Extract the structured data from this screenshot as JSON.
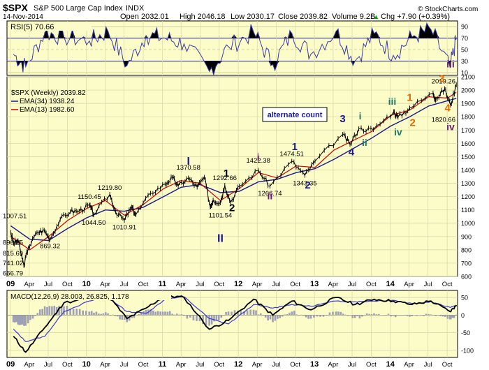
{
  "header": {
    "symbol": "$SPX",
    "name": "S&P 500 Large Cap Index",
    "exchange": "INDX",
    "date": "14-Nov-2014",
    "open": "Open 2032.01",
    "high": "High 2046.18",
    "low": "Low 2030.17",
    "close": "Close 2039.82",
    "volume": "Volume 9.2B",
    "chg": "Chg +7.90 (+0.39%)",
    "chg_arrow": "▲",
    "watermark": "© StockCharts.com"
  },
  "colors": {
    "panel_bg": "#fcfcc8",
    "price_line": "#000000",
    "ema34": "#1a1a8c",
    "ema13": "#cc0000",
    "rsi": "#3a3aa8",
    "macd": "#000000",
    "signal": "#3a3ad0",
    "hist": "#a0a0b4",
    "chg_up": "#00a000",
    "wave_dark_blue": "#1a1a8c",
    "wave_black": "#000000",
    "wave_purple": "#6a1a78",
    "wave_green": "#1a7a6a",
    "wave_orange": "#e06a00"
  },
  "panels": {
    "rsi_label": "RSI(5) 70.66",
    "price_label": "$SPX (Weekly) 2039.82",
    "ema34_label": "EMA(34) 1938.24",
    "ema13_label": "EMA(13) 1982.60",
    "macd_label": "MACD(12,26,9) 28.003, 26.825, 1.178",
    "alternate_label": "alternate count"
  },
  "chart_data": [
    {
      "type": "line",
      "title": "RSI(5) 70.66",
      "ylim": [
        5,
        100
      ],
      "y_ticks": [
        10,
        30,
        50,
        70,
        90
      ],
      "x": [
        "2009-01",
        "2009-03",
        "2009-06",
        "2009-09",
        "2010-01",
        "2010-04",
        "2010-07",
        "2010-10",
        "2011-01",
        "2011-04",
        "2011-08",
        "2011-11",
        "2012-03",
        "2012-06",
        "2012-09",
        "2012-12",
        "2013-04",
        "2013-07",
        "2013-10",
        "2014-01",
        "2014-04",
        "2014-07",
        "2014-10",
        "2014-11"
      ],
      "values": [
        42,
        20,
        80,
        72,
        65,
        82,
        22,
        75,
        70,
        60,
        12,
        55,
        80,
        24,
        78,
        42,
        82,
        30,
        78,
        40,
        72,
        85,
        18,
        71
      ]
    },
    {
      "type": "line",
      "title": "$SPX (Weekly) 2039.82",
      "ylim": [
        600,
        2100
      ],
      "y_ticks": [
        600,
        700,
        800,
        900,
        1000,
        1100,
        1200,
        1300,
        1400,
        1500,
        1600,
        1700,
        1800,
        1900,
        2000,
        2100
      ],
      "x_ticks": [
        "09",
        "Apr",
        "Jul",
        "Oct",
        "10",
        "Apr",
        "Jul",
        "Oct",
        "11",
        "Apr",
        "Jul",
        "Oct",
        "12",
        "Apr",
        "Jul",
        "Oct",
        "13",
        "Apr",
        "Jul",
        "Oct",
        "14",
        "Apr",
        "Jul",
        "Oct"
      ],
      "series": [
        {
          "name": "$SPX (Weekly) 2039.82",
          "x": [
            "2009-01-02",
            "2009-01-16",
            "2009-02-06",
            "2009-03-06",
            "2009-03-27",
            "2009-05-08",
            "2009-06-12",
            "2009-07-10",
            "2009-08-28",
            "2009-10-16",
            "2009-11-27",
            "2010-01-15",
            "2010-02-05",
            "2010-04-23",
            "2010-05-21",
            "2010-07-02",
            "2010-08-06",
            "2010-08-27",
            "2010-11-05",
            "2011-01-14",
            "2011-02-18",
            "2011-03-18",
            "2011-05-06",
            "2011-06-17",
            "2011-07-22",
            "2011-08-19",
            "2011-09-02",
            "2011-10-07",
            "2011-10-28",
            "2011-11-25",
            "2012-01-06",
            "2012-04-06",
            "2012-06-01",
            "2012-09-14",
            "2012-11-16",
            "2013-01-04",
            "2013-05-17",
            "2013-06-21",
            "2013-08-02",
            "2013-10-11",
            "2014-01-17",
            "2014-02-07",
            "2014-04-04",
            "2014-07-25",
            "2014-08-08",
            "2014-09-19",
            "2014-10-17",
            "2014-11-14"
          ],
          "values": [
            931,
            850,
            868,
            683,
            815,
            929,
            946,
            880,
            1029,
            1087,
            1091,
            1136,
            1066,
            1217,
            1087,
            1022,
            1121,
            1064,
            1225,
            1293,
            1343,
            1279,
            1340,
            1271,
            1345,
            1123,
            1174,
            1155,
            1285,
            1158,
            1277,
            1398,
            1278,
            1466,
            1359,
            1466,
            1667,
            1592,
            1709,
            1703,
            1838,
            1797,
            1865,
            1978,
            1931,
            2010,
            1886,
            2040
          ]
        },
        {
          "name": "EMA(34) 1938.24",
          "x": [
            "2009-01-02",
            "2009-04-03",
            "2009-07-03",
            "2009-10-02",
            "2010-01-01",
            "2010-04-02",
            "2010-07-02",
            "2010-10-01",
            "2011-01-07",
            "2011-04-01",
            "2011-07-01",
            "2011-10-07",
            "2012-01-06",
            "2012-04-06",
            "2012-07-06",
            "2012-10-05",
            "2013-01-04",
            "2013-04-05",
            "2013-07-05",
            "2013-10-04",
            "2014-01-03",
            "2014-04-04",
            "2014-07-04",
            "2014-10-03",
            "2014-11-14"
          ],
          "values": [
            980,
            880,
            870,
            960,
            1040,
            1100,
            1090,
            1120,
            1200,
            1270,
            1290,
            1230,
            1240,
            1310,
            1330,
            1380,
            1410,
            1480,
            1560,
            1640,
            1730,
            1800,
            1880,
            1920,
            1938
          ]
        },
        {
          "name": "EMA(13) 1982.60",
          "x": [
            "2009-01-02",
            "2009-04-03",
            "2009-07-03",
            "2009-10-02",
            "2010-01-01",
            "2010-04-02",
            "2010-07-02",
            "2010-10-01",
            "2011-01-07",
            "2011-04-01",
            "2011-07-01",
            "2011-10-07",
            "2012-01-06",
            "2012-04-06",
            "2012-07-06",
            "2012-10-05",
            "2013-01-04",
            "2013-04-05",
            "2013-07-05",
            "2013-10-04",
            "2014-01-03",
            "2014-04-04",
            "2014-07-04",
            "2014-10-03",
            "2014-11-14"
          ],
          "values": [
            900,
            800,
            900,
            1020,
            1110,
            1170,
            1060,
            1140,
            1260,
            1320,
            1300,
            1170,
            1260,
            1380,
            1340,
            1430,
            1420,
            1550,
            1620,
            1690,
            1810,
            1850,
            1950,
            1940,
            1983
          ]
        }
      ],
      "price_labels": [
        {
          "text": "1007.51",
          "x": "2008-12-19",
          "y": 1007.51
        },
        {
          "text": "896.25",
          "x": "2008-12-26",
          "y": 896.25
        },
        {
          "text": "815.69",
          "x": "2009-01-09",
          "y": 815.69
        },
        {
          "text": "741.02",
          "x": "2009-01-30",
          "y": 741.02
        },
        {
          "text": "666.79",
          "x": "2009-03-06",
          "y": 666.79
        },
        {
          "text": "869.32",
          "x": "2009-07-10",
          "y": 869.32
        },
        {
          "text": "1150.45",
          "x": "2010-01-15",
          "y": 1150.45
        },
        {
          "text": "1044.50",
          "x": "2010-02-05",
          "y": 1044.5
        },
        {
          "text": "1219.80",
          "x": "2010-04-23",
          "y": 1219.8
        },
        {
          "text": "1010.91",
          "x": "2010-07-02",
          "y": 1010.91
        },
        {
          "text": "1370.58",
          "x": "2011-05-06",
          "y": 1370.58
        },
        {
          "text": "1101.54",
          "x": "2011-10-07",
          "y": 1101.54
        },
        {
          "text": "1292.66",
          "x": "2011-10-28",
          "y": 1292.66
        },
        {
          "text": "1422.38",
          "x": "2012-04-06",
          "y": 1422.38
        },
        {
          "text": "1266.74",
          "x": "2012-06-01",
          "y": 1266.74
        },
        {
          "text": "1474.51",
          "x": "2012-09-14",
          "y": 1474.51
        },
        {
          "text": "1343.35",
          "x": "2012-11-16",
          "y": 1343.35
        },
        {
          "text": "2019.26",
          "x": "2014-09-19",
          "y": 2019.26
        },
        {
          "text": "1820.66",
          "x": "2014-10-17",
          "y": 1820.66
        }
      ],
      "wave_labels": [
        {
          "text": "I",
          "x": "2011-05-06",
          "y": 1440,
          "color": "wave_dark_blue",
          "size": 16
        },
        {
          "text": "II",
          "x": "2011-10-07",
          "y": 860,
          "color": "wave_dark_blue",
          "size": 16
        },
        {
          "text": "1",
          "x": "2011-11-04",
          "y": 1350,
          "color": "wave_black",
          "size": 15
        },
        {
          "text": "2",
          "x": "2011-12-02",
          "y": 1090,
          "color": "wave_black",
          "size": 15
        },
        {
          "text": "i",
          "x": "2012-04-06",
          "y": 1470,
          "color": "wave_purple",
          "size": 14
        },
        {
          "text": "ii",
          "x": "2012-06-01",
          "y": 1180,
          "color": "wave_purple",
          "size": 14
        },
        {
          "text": "1",
          "x": "2012-09-28",
          "y": 1550,
          "color": "wave_dark_blue",
          "size": 15
        },
        {
          "text": "2",
          "x": "2012-11-30",
          "y": 1260,
          "color": "wave_dark_blue",
          "size": 15
        },
        {
          "text": "3",
          "x": "2013-05-17",
          "y": 1760,
          "color": "wave_dark_blue",
          "size": 15
        },
        {
          "text": "4",
          "x": "2013-06-28",
          "y": 1510,
          "color": "wave_dark_blue",
          "size": 15
        },
        {
          "text": "i",
          "x": "2013-08-09",
          "y": 1780,
          "color": "wave_green",
          "size": 14
        },
        {
          "text": "ii",
          "x": "2013-08-30",
          "y": 1580,
          "color": "wave_green",
          "size": 14
        },
        {
          "text": "iii",
          "x": "2014-01-10",
          "y": 1890,
          "color": "wave_green",
          "size": 14
        },
        {
          "text": "iv",
          "x": "2014-02-07",
          "y": 1660,
          "color": "wave_green",
          "size": 14
        },
        {
          "text": "1",
          "x": "2014-04-04",
          "y": 1920,
          "color": "wave_orange",
          "size": 15
        },
        {
          "text": "2",
          "x": "2014-04-18",
          "y": 1730,
          "color": "wave_orange",
          "size": 15
        },
        {
          "text": "3",
          "x": "2014-09-05",
          "y": 2060,
          "color": "wave_orange",
          "size": 15
        },
        {
          "text": "4",
          "x": "2014-10-03",
          "y": 1840,
          "color": "wave_orange",
          "size": 15
        },
        {
          "text": "iii",
          "x": "2014-10-31",
          "y": 2170,
          "color": "wave_purple",
          "size": 14
        },
        {
          "text": "iv",
          "x": "2014-11-07",
          "y": 1700,
          "color": "wave_purple",
          "size": 14
        }
      ]
    },
    {
      "type": "line",
      "title": "MACD(12,26,9) 28.003, 26.825, 1.178",
      "ylim": [
        -120,
        70
      ],
      "y_ticks": [
        -100,
        -50,
        0,
        50
      ],
      "x": [
        "2009-01",
        "2009-03",
        "2009-06",
        "2009-09",
        "2010-01",
        "2010-04",
        "2010-07",
        "2010-10",
        "2011-01",
        "2011-04",
        "2011-08",
        "2011-11",
        "2012-03",
        "2012-06",
        "2012-09",
        "2012-12",
        "2013-04",
        "2013-07",
        "2013-10",
        "2014-01",
        "2014-04",
        "2014-07",
        "2014-10",
        "2014-11"
      ],
      "series": [
        {
          "name": "MACD",
          "values": [
            -60,
            -105,
            -35,
            35,
            50,
            55,
            -10,
            20,
            55,
            50,
            -40,
            -15,
            45,
            0,
            40,
            15,
            50,
            30,
            45,
            40,
            30,
            40,
            10,
            28
          ]
        },
        {
          "name": "Signal",
          "values": [
            -40,
            -75,
            -60,
            10,
            40,
            50,
            10,
            5,
            45,
            52,
            -10,
            -25,
            30,
            20,
            30,
            25,
            40,
            38,
            40,
            42,
            33,
            38,
            22,
            27
          ]
        }
      ]
    }
  ],
  "x_axis": {
    "labels": [
      "09",
      "Apr",
      "Jul",
      "Oct",
      "10",
      "Apr",
      "Jul",
      "Oct",
      "11",
      "Apr",
      "Jul",
      "Oct",
      "12",
      "Apr",
      "Jul",
      "Oct",
      "13",
      "Apr",
      "Jul",
      "Oct",
      "14",
      "Apr",
      "Jul",
      "Oct"
    ],
    "dates": [
      "2009-01-01",
      "2009-04-01",
      "2009-07-01",
      "2009-10-01",
      "2010-01-01",
      "2010-04-01",
      "2010-07-01",
      "2010-10-01",
      "2011-01-01",
      "2011-04-01",
      "2011-07-01",
      "2011-10-01",
      "2012-01-01",
      "2012-04-01",
      "2012-07-01",
      "2012-10-01",
      "2013-01-01",
      "2013-04-01",
      "2013-07-01",
      "2013-10-01",
      "2014-01-01",
      "2014-04-01",
      "2014-07-01",
      "2014-10-01"
    ],
    "year_ticks": [
      "09",
      "10",
      "11",
      "12",
      "13",
      "14"
    ]
  }
}
